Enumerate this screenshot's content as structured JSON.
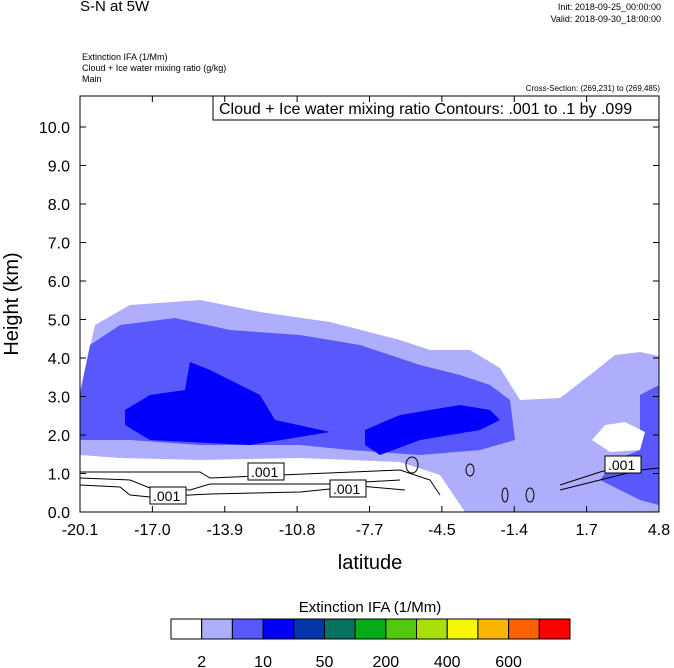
{
  "header": {
    "title": "S-N at 5W",
    "init": "Init: 2018-09-25_00:00:00",
    "valid": "Valid: 2018-09-30_18:00:00",
    "field_lines": [
      "Extinction IFA   (1/Mm)",
      "Cloud + Ice water mixing ratio    (g/kg)",
      "Main"
    ],
    "cross_section": "Cross-Section: (269,231) to (269,485)"
  },
  "chart_data": {
    "type": "heatmap",
    "title": "Cloud + Ice water mixing ratio Contours: .001 to .1 by .099",
    "xlabel": "latitude",
    "ylabel": "Height (km)",
    "xlim": [
      -20.1,
      4.8
    ],
    "ylim": [
      0,
      10.8
    ],
    "xticks": [
      "-20.1",
      "-17.0",
      "-13.9",
      "-10.8",
      "-7.7",
      "-4.5",
      "-1.4",
      "1.7",
      "4.8"
    ],
    "yticks": [
      "0.0",
      "1.0",
      "2.0",
      "3.0",
      "4.0",
      "5.0",
      "6.0",
      "7.0",
      "8.0",
      "9.0",
      "10.0"
    ],
    "contour_labels": [
      ".001",
      ".001",
      ".001",
      ".001"
    ],
    "colorbar": {
      "title": "Extinction IFA  (1/Mm)",
      "colors": [
        "#ffffff",
        "#aeaefc",
        "#5858fc",
        "#0000fc",
        "#0235ac",
        "#05735f",
        "#04ac1a",
        "#54c80b",
        "#a8e00a",
        "#f4f800",
        "#fcb400",
        "#fc6000",
        "#fc0000"
      ],
      "labels": [
        "2",
        "10",
        "50",
        "200",
        "400",
        "600"
      ]
    }
  }
}
